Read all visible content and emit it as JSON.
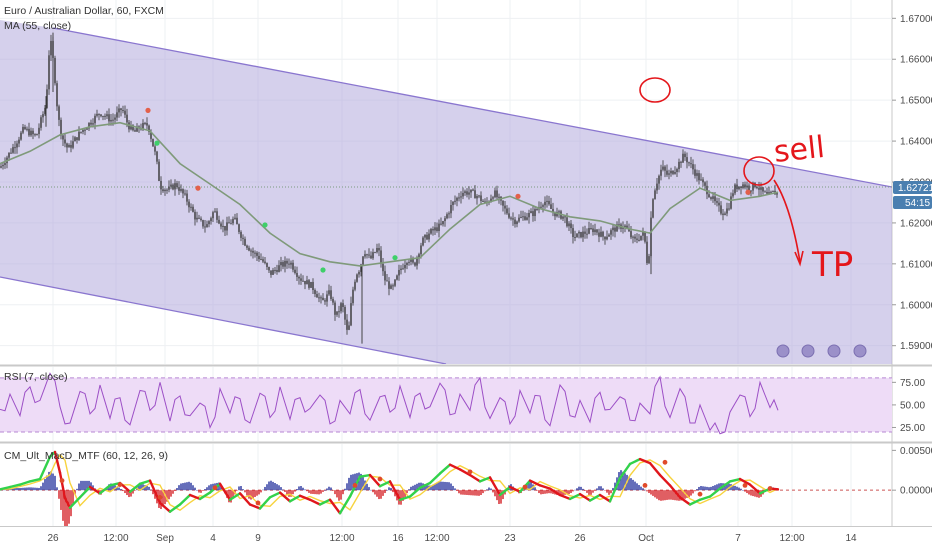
{
  "header": {
    "symbol_title": "Euro / Australian Dollar, 60, FXCM",
    "ma_label": "MA (55, close)",
    "rsi_label": "RSI (7, close)",
    "macd_label": "CM_Ult_MacD_MTF (60, 12, 26, 9)"
  },
  "price_axis": {
    "ticks": [
      "1.67000",
      "1.66000",
      "1.65000",
      "1.64000",
      "1.63000",
      "1.62000",
      "1.61000",
      "1.60000",
      "1.59000"
    ],
    "ylim": [
      1.5865,
      1.6735
    ],
    "last_price": "1.62721",
    "countdown": "54:15"
  },
  "rsi_axis": {
    "ticks": [
      "75.00",
      "50.00",
      "25.00"
    ],
    "ylim": [
      10,
      92
    ],
    "bands": [
      80,
      20
    ]
  },
  "macd_axis": {
    "ticks": [
      "0.00500",
      "0.00000"
    ],
    "ylim": [
      -0.0045,
      0.0058
    ]
  },
  "time_axis": {
    "labels": [
      "26",
      "12:00",
      "Sep",
      "4",
      "9",
      "12:00",
      "16",
      "12:00",
      "23",
      "26",
      "Oct",
      "7",
      "12:00",
      "14"
    ]
  },
  "annotations": {
    "sell_text": "sell",
    "tp_text": "TP"
  },
  "colors": {
    "channel_fill": "#b2a9dc",
    "channel_line": "#8a76cf",
    "ma": "#7f9a7a",
    "candle": "#333333",
    "rsi_line": "#9c4fc6",
    "rsi_band": "#eedcf7",
    "hand": "#e4161b",
    "price_tag": "#4a7fb0",
    "macd_up": "#32d24b",
    "macd_down": "#e0161c",
    "macd_neutral": "#f7d33e",
    "hist_blue": "#1d2c9b",
    "hist_red": "#d2151b"
  },
  "chart_data": [
    {
      "type": "line",
      "title": "Euro / Australian Dollar, 60, FXCM",
      "xlabel": "",
      "ylabel": "",
      "ylim": [
        1.5865,
        1.6735
      ],
      "x_ticks": [
        "26",
        "12:00",
        "Sep",
        "4",
        "9",
        "12:00",
        "16",
        "12:00",
        "23",
        "26",
        "Oct",
        "7",
        "12:00",
        "14"
      ],
      "series": [
        {
          "name": "Price",
          "x": [
            0,
            12,
            24,
            36,
            46,
            50,
            54,
            58,
            62,
            68,
            80,
            90,
            100,
            112,
            122,
            128,
            134,
            140,
            148,
            156,
            160,
            168,
            176,
            186,
            196,
            206,
            214,
            224,
            234,
            244,
            252,
            262,
            270,
            280,
            290,
            300,
            312,
            322,
            330,
            336,
            342,
            348,
            352,
            356,
            360,
            364,
            370,
            378,
            384,
            392,
            400,
            408,
            414,
            422,
            432,
            442,
            452,
            462,
            470,
            478,
            486,
            494,
            504,
            514,
            524,
            534,
            544,
            554,
            564,
            574,
            584,
            594,
            604,
            614,
            624,
            634,
            644,
            648,
            652,
            656,
            662,
            668,
            676,
            684,
            692,
            700,
            708,
            716,
            722,
            728,
            734,
            742,
            750,
            756,
            762,
            768,
            774,
            778
          ],
          "y": [
            1.6335,
            1.638,
            1.643,
            1.641,
            1.649,
            1.6655,
            1.658,
            1.646,
            1.641,
            1.638,
            1.642,
            1.6445,
            1.647,
            1.645,
            1.648,
            1.644,
            1.642,
            1.6435,
            1.644,
            1.636,
            1.629,
            1.628,
            1.6295,
            1.626,
            1.621,
            1.619,
            1.623,
            1.6185,
            1.621,
            1.6155,
            1.613,
            1.611,
            1.6075,
            1.6095,
            1.6105,
            1.6065,
            1.6045,
            1.6005,
            1.603,
            1.597,
            1.6005,
            1.592,
            1.6025,
            1.6075,
            1.609,
            1.6135,
            1.611,
            1.614,
            1.6065,
            1.6035,
            1.6085,
            1.6115,
            1.6095,
            1.6155,
            1.618,
            1.6195,
            1.6245,
            1.6275,
            1.6275,
            1.6265,
            1.6245,
            1.6275,
            1.6235,
            1.6205,
            1.6215,
            1.6225,
            1.6255,
            1.6225,
            1.6215,
            1.6165,
            1.6175,
            1.6185,
            1.6165,
            1.6185,
            1.6195,
            1.6155,
            1.6175,
            1.6085,
            1.6255,
            1.6295,
            1.6335,
            1.6315,
            1.6335,
            1.6365,
            1.6335,
            1.6305,
            1.6275,
            1.6245,
            1.6225,
            1.6235,
            1.6285,
            1.6295,
            1.6285,
            1.6295,
            1.6275,
            1.6265,
            1.6275,
            1.6272
          ]
        },
        {
          "name": "MA (55, close)",
          "x": [
            0,
            30,
            60,
            90,
            120,
            150,
            180,
            210,
            240,
            270,
            300,
            330,
            360,
            390,
            420,
            450,
            480,
            510,
            540,
            570,
            600,
            630,
            650,
            670,
            700,
            730,
            760,
            778
          ],
          "y": [
            1.6345,
            1.6375,
            1.6415,
            1.6435,
            1.6445,
            1.6425,
            1.6345,
            1.6295,
            1.6245,
            1.6175,
            1.6125,
            1.6105,
            1.6095,
            1.6105,
            1.6115,
            1.6185,
            1.6245,
            1.6265,
            1.6235,
            1.6215,
            1.6205,
            1.6185,
            1.6175,
            1.6235,
            1.6285,
            1.6255,
            1.6265,
            1.6275
          ]
        }
      ]
    },
    {
      "type": "line",
      "title": "RSI (7, close)",
      "ylim": [
        10,
        92
      ],
      "series": [
        {
          "name": "RSI (7, close)",
          "x": [
            0,
            10,
            20,
            30,
            40,
            50,
            60,
            70,
            80,
            90,
            100,
            110,
            120,
            130,
            140,
            150,
            160,
            170,
            180,
            190,
            200,
            210,
            220,
            230,
            240,
            250,
            260,
            270,
            280,
            290,
            300,
            310,
            320,
            330,
            340,
            350,
            360,
            370,
            380,
            390,
            400,
            410,
            420,
            430,
            440,
            450,
            460,
            470,
            480,
            490,
            500,
            510,
            520,
            530,
            540,
            550,
            560,
            570,
            580,
            590,
            600,
            610,
            620,
            630,
            640,
            650,
            660,
            670,
            680,
            690,
            700,
            710,
            720,
            730,
            740,
            750,
            760,
            770,
            778
          ],
          "y": [
            45,
            62,
            38,
            70,
            55,
            85,
            48,
            30,
            65,
            40,
            72,
            35,
            58,
            28,
            66,
            44,
            75,
            32,
            60,
            38,
            52,
            25,
            68,
            41,
            57,
            30,
            63,
            36,
            70,
            34,
            58,
            46,
            61,
            29,
            55,
            40,
            67,
            33,
            59,
            42,
            71,
            36,
            63,
            48,
            74,
            39,
            62,
            44,
            80,
            35,
            58,
            29,
            66,
            41,
            60,
            27,
            72,
            38,
            55,
            31,
            64,
            45,
            59,
            33,
            52,
            40,
            81,
            36,
            68,
            30,
            50,
            22,
            18,
            42,
            61,
            37,
            75,
            47,
            44
          ]
        }
      ]
    },
    {
      "type": "line",
      "title": "CM_Ult_MacD_MTF (60, 12, 26, 9)",
      "ylim": [
        -0.0045,
        0.0058
      ],
      "series": [
        {
          "name": "MACD",
          "x": [
            0,
            10,
            20,
            30,
            40,
            50,
            55,
            60,
            65,
            70,
            80,
            90,
            100,
            110,
            120,
            130,
            140,
            150,
            160,
            170,
            180,
            190,
            200,
            210,
            220,
            230,
            240,
            250,
            260,
            270,
            280,
            290,
            300,
            310,
            320,
            330,
            340,
            350,
            360,
            370,
            380,
            390,
            400,
            410,
            420,
            430,
            440,
            450,
            460,
            470,
            480,
            490,
            500,
            510,
            520,
            530,
            540,
            550,
            560,
            570,
            580,
            590,
            600,
            610,
            620,
            630,
            640,
            650,
            660,
            670,
            680,
            690,
            700,
            710,
            720,
            730,
            740,
            750,
            760,
            770,
            778
          ],
          "y": [
            0.0001,
            0.0004,
            0.0007,
            0.0011,
            0.0014,
            0.0042,
            0.0048,
            0.0022,
            -0.001,
            -0.0022,
            -0.0009,
            0.0004,
            -0.0004,
            0.0006,
            0.0009,
            -0.0002,
            0.0008,
            0.0012,
            -0.0016,
            -0.0027,
            -0.0018,
            -0.0006,
            -0.0011,
            -0.0003,
            0.0008,
            -0.0012,
            -0.0004,
            -0.0018,
            -0.0023,
            -0.0009,
            -0.0003,
            -0.0014,
            -0.0007,
            -0.0012,
            -0.0018,
            -0.0012,
            -0.0029,
            -0.0008,
            0.0017,
            0.0019,
            0.0005,
            0.0011,
            -0.0012,
            -0.0008,
            0.0003,
            0.0009,
            0.0021,
            0.0032,
            0.0026,
            0.0019,
            0.0011,
            0.0016,
            -0.0006,
            0.0004,
            -0.0002,
            0.0012,
            0.0006,
            0.0002,
            -0.0006,
            -0.0011,
            -0.0005,
            -0.0013,
            -0.0006,
            -0.0014,
            0.0015,
            0.0033,
            0.0039,
            0.0034,
            0.0019,
            0.0006,
            -0.0009,
            -0.0018,
            -0.0012,
            -0.0008,
            0.0002,
            0.0011,
            0.0014,
            0.0007,
            -0.0004,
            0.0002,
            0.0001
          ]
        }
      ]
    }
  ]
}
